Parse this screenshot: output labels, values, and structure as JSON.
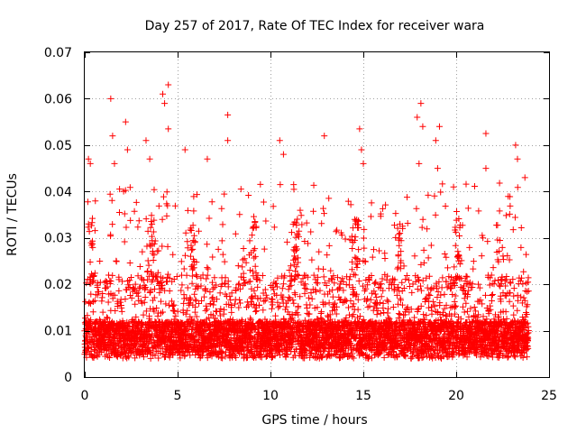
{
  "chart_data": {
    "type": "scatter",
    "title": "Day 257 of 2017, Rate Of TEC Index for receiver wara",
    "xlabel": "GPS time / hours",
    "ylabel": "ROTI / TECUs",
    "xlim": [
      0,
      25
    ],
    "ylim": [
      0,
      0.07
    ],
    "xticks": [
      0,
      5,
      10,
      15,
      20,
      25
    ],
    "xtick_labels": [
      "0",
      "5",
      "10",
      "15",
      "20",
      "25"
    ],
    "yticks": [
      0,
      0.01,
      0.02,
      0.03,
      0.04,
      0.05,
      0.06,
      0.07
    ],
    "ytick_labels": [
      "0",
      "0.01",
      "0.02",
      "0.03",
      "0.04",
      "0.05",
      "0.06",
      "0.07"
    ],
    "grid": true,
    "marker": "+",
    "color": "#ff0000",
    "x_data_range": [
      0,
      23.9
    ],
    "typical_range": [
      0.004,
      0.02
    ],
    "points": [
      {
        "x": 0.2,
        "y": 0.047
      },
      {
        "x": 0.3,
        "y": 0.046
      },
      {
        "x": 1.4,
        "y": 0.06
      },
      {
        "x": 1.5,
        "y": 0.052
      },
      {
        "x": 1.6,
        "y": 0.046
      },
      {
        "x": 2.2,
        "y": 0.055
      },
      {
        "x": 2.3,
        "y": 0.049
      },
      {
        "x": 3.3,
        "y": 0.051
      },
      {
        "x": 3.5,
        "y": 0.047
      },
      {
        "x": 4.2,
        "y": 0.061
      },
      {
        "x": 4.3,
        "y": 0.059
      },
      {
        "x": 4.5,
        "y": 0.063
      },
      {
        "x": 4.5,
        "y": 0.0535
      },
      {
        "x": 5.4,
        "y": 0.049
      },
      {
        "x": 6.6,
        "y": 0.047
      },
      {
        "x": 7.7,
        "y": 0.0565
      },
      {
        "x": 7.7,
        "y": 0.051
      },
      {
        "x": 10.5,
        "y": 0.051
      },
      {
        "x": 10.7,
        "y": 0.048
      },
      {
        "x": 12.9,
        "y": 0.052
      },
      {
        "x": 14.8,
        "y": 0.0535
      },
      {
        "x": 14.9,
        "y": 0.049
      },
      {
        "x": 15.0,
        "y": 0.046
      },
      {
        "x": 17.9,
        "y": 0.056
      },
      {
        "x": 18.1,
        "y": 0.059
      },
      {
        "x": 18.2,
        "y": 0.054
      },
      {
        "x": 18.0,
        "y": 0.046
      },
      {
        "x": 18.9,
        "y": 0.051
      },
      {
        "x": 19.1,
        "y": 0.054
      },
      {
        "x": 19.0,
        "y": 0.045
      },
      {
        "x": 21.6,
        "y": 0.0525
      },
      {
        "x": 21.6,
        "y": 0.045
      },
      {
        "x": 23.2,
        "y": 0.05
      },
      {
        "x": 23.3,
        "y": 0.047
      },
      {
        "x": 23.7,
        "y": 0.043
      }
    ]
  }
}
